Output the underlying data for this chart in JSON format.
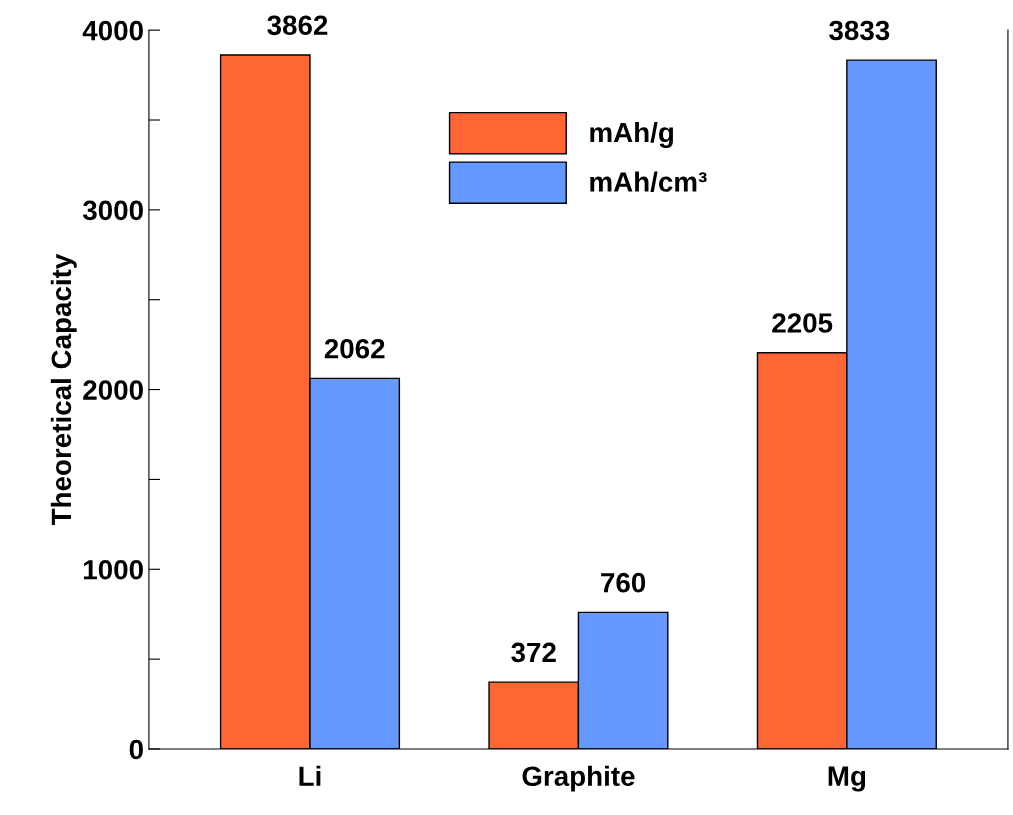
{
  "chart_data": {
    "type": "bar",
    "ylabel": "Theoretical Capacity",
    "categories": [
      "Li",
      "Graphite",
      "Mg"
    ],
    "series": [
      {
        "name": "mAh/g",
        "color": "#ff6633",
        "values": [
          3862,
          372,
          2205
        ]
      },
      {
        "name": "mAh/cm³",
        "color": "#6699ff",
        "values": [
          2062,
          760,
          3833
        ]
      }
    ],
    "ylim": [
      0,
      4000
    ],
    "yticks": [
      0,
      {
        "value": 500,
        "label": null
      },
      1000,
      {
        "value": 1500,
        "label": null
      },
      2000,
      {
        "value": 2500,
        "label": null
      },
      3000,
      {
        "value": 3500,
        "label": null
      },
      4000
    ],
    "data_labels": true,
    "legend": "top",
    "grid": false
  }
}
